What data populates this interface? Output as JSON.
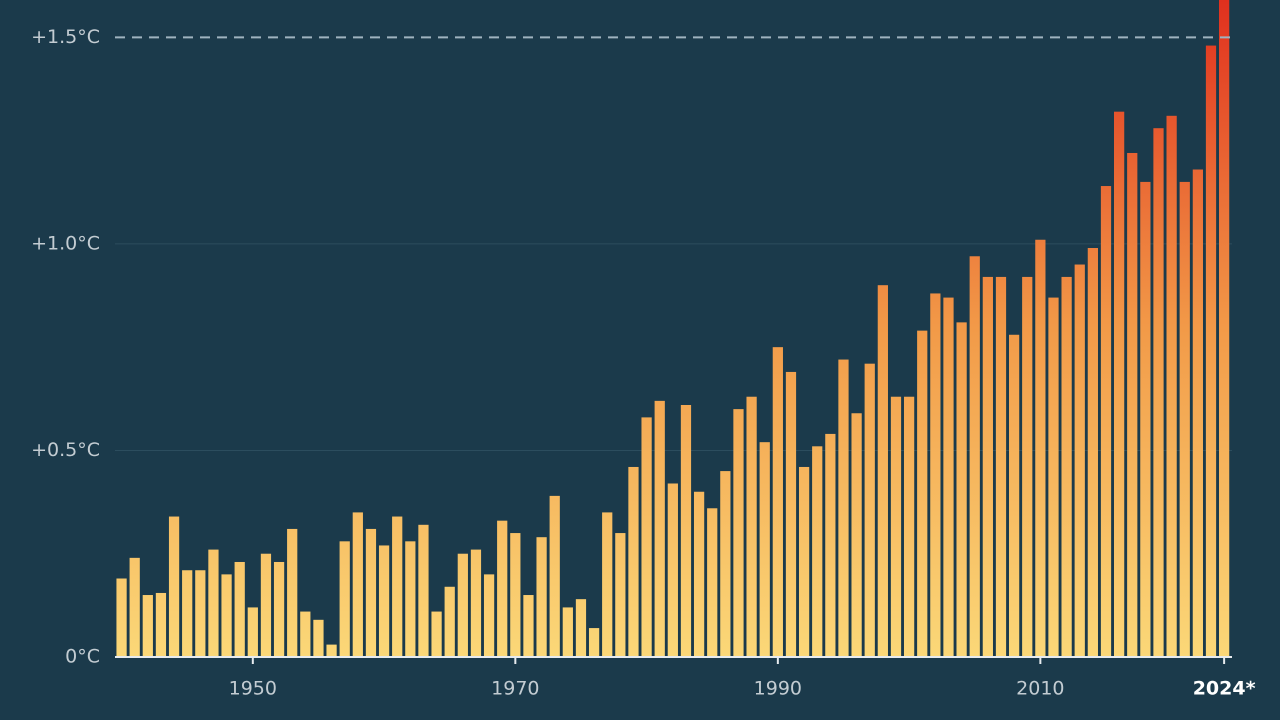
{
  "chart_data": {
    "type": "bar",
    "x": [
      1940,
      1941,
      1942,
      1943,
      1944,
      1945,
      1946,
      1947,
      1948,
      1949,
      1950,
      1951,
      1952,
      1953,
      1954,
      1955,
      1956,
      1957,
      1958,
      1959,
      1960,
      1961,
      1962,
      1963,
      1964,
      1965,
      1966,
      1967,
      1968,
      1969,
      1970,
      1971,
      1972,
      1973,
      1974,
      1975,
      1976,
      1977,
      1978,
      1979,
      1980,
      1981,
      1982,
      1983,
      1984,
      1985,
      1986,
      1987,
      1988,
      1989,
      1990,
      1991,
      1992,
      1993,
      1994,
      1995,
      1996,
      1997,
      1998,
      1999,
      2000,
      2001,
      2002,
      2003,
      2004,
      2005,
      2006,
      2007,
      2008,
      2009,
      2010,
      2011,
      2012,
      2013,
      2014,
      2015,
      2016,
      2017,
      2018,
      2019,
      2020,
      2021,
      2022,
      2023,
      2024
    ],
    "values": [
      0.19,
      0.24,
      0.15,
      0.155,
      0.34,
      0.21,
      0.21,
      0.26,
      0.2,
      0.23,
      0.12,
      0.25,
      0.23,
      0.31,
      0.11,
      0.09,
      0.03,
      0.28,
      0.35,
      0.31,
      0.27,
      0.34,
      0.28,
      0.32,
      0.11,
      0.17,
      0.25,
      0.26,
      0.2,
      0.33,
      0.3,
      0.15,
      0.29,
      0.39,
      0.12,
      0.14,
      0.07,
      0.35,
      0.3,
      0.46,
      0.58,
      0.62,
      0.42,
      0.61,
      0.4,
      0.36,
      0.45,
      0.6,
      0.63,
      0.52,
      0.75,
      0.69,
      0.46,
      0.51,
      0.54,
      0.72,
      0.59,
      0.71,
      0.9,
      0.63,
      0.63,
      0.79,
      0.88,
      0.87,
      0.81,
      0.97,
      0.92,
      0.92,
      0.78,
      0.92,
      1.01,
      0.87,
      0.92,
      0.95,
      0.99,
      1.14,
      1.32,
      1.22,
      1.15,
      1.28,
      1.31,
      1.15,
      1.18,
      1.48,
      1.6
    ],
    "gradient": [
      "#fbd878",
      "#f29a48",
      "#e0301e"
    ],
    "xlim": [
      1939.5,
      2024.6
    ],
    "xticks": [
      1950,
      1970,
      1990,
      2010,
      {
        "value": 2024,
        "label": "2024*"
      }
    ],
    "ylim": [
      0,
      1.6
    ],
    "yticks": [
      {
        "value": 0,
        "label": "0°C"
      },
      {
        "value": 0.5,
        "label": "+0.5°C"
      },
      {
        "value": 1.0,
        "label": "+1.0°C"
      },
      {
        "value": 1.5,
        "label": "+1.5°C"
      }
    ],
    "reference_line": 1.5,
    "grid": true
  }
}
